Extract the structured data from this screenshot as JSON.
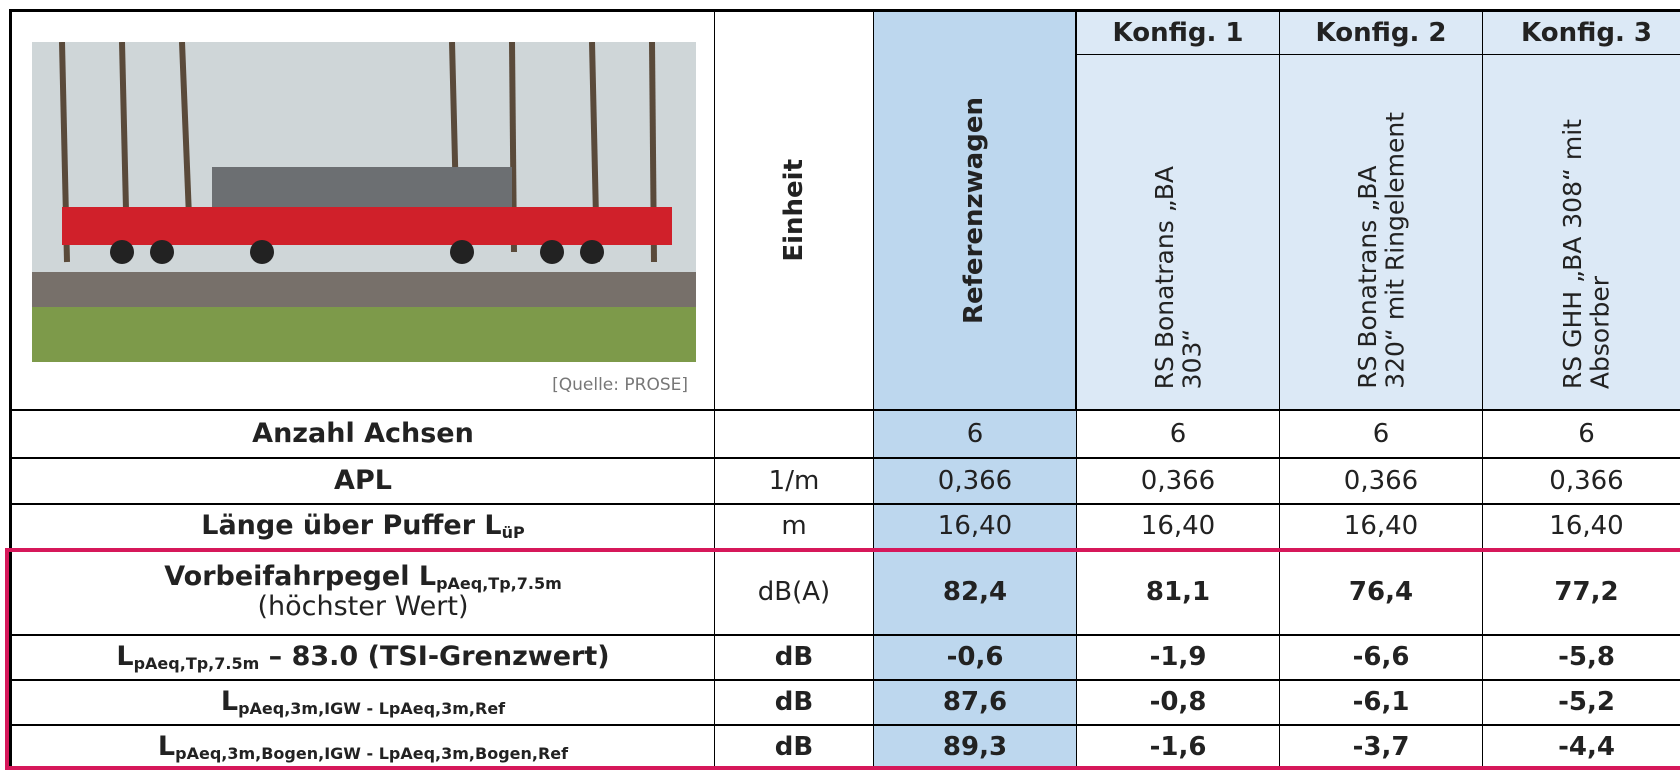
{
  "header": {
    "image_caption": "[Quelle: PROSE]",
    "unit_header": "Einheit",
    "reference": "Referenzwagen",
    "configs": [
      {
        "title": "Konfig. 1",
        "lines": [
          "RS Bonatrans „BA",
          "303“"
        ]
      },
      {
        "title": "Konfig. 2",
        "lines": [
          "RS Bonatrans „BA",
          "320“ mit Ringelement"
        ]
      },
      {
        "title": "Konfig. 3",
        "lines": [
          "RS GHH „BA 308“ mit",
          "Absorber"
        ]
      }
    ]
  },
  "rows": [
    {
      "label": [
        "Anzahl Achsen"
      ],
      "unit": "",
      "values": [
        "6",
        "6",
        "6",
        "6"
      ]
    },
    {
      "label": [
        "APL"
      ],
      "unit": "1/m",
      "values": [
        "0,366",
        "0,366",
        "0,366",
        "0,366"
      ]
    },
    {
      "label": [
        "Länge über Puffer L",
        "üP"
      ],
      "unit": "m",
      "values": [
        "16,40",
        "16,40",
        "16,40",
        "16,40"
      ]
    },
    {
      "label": [
        "Vorbeifahrpegel L",
        "pAeq,Tp,7.5m"
      ],
      "label_line2": "(höchster Wert)",
      "unit": "dB(A)",
      "values": [
        "82,4",
        "81,1",
        "76,4",
        "77,2"
      ]
    },
    {
      "label": [
        "L",
        "pAeq,Tp,7.5m",
        " – 83.0 (TSI-Grenzwert)"
      ],
      "unit": "dB",
      "values": [
        "-0,6",
        "-1,9",
        "-6,6",
        "-5,8"
      ]
    },
    {
      "label": [
        "L",
        "pAeq,3m,IGW - LpAeq,3m,Ref"
      ],
      "unit": "dB",
      "values": [
        "87,6",
        "-0,8",
        "-6,1",
        "-5,2"
      ]
    },
    {
      "label": [
        "L",
        "pAeq,3m,Bogen,IGW - LpAeq,3m,Bogen,Ref"
      ],
      "unit": "dB",
      "values": [
        "89,3",
        "-1,6",
        "-3,7",
        "-4,4"
      ]
    }
  ]
}
